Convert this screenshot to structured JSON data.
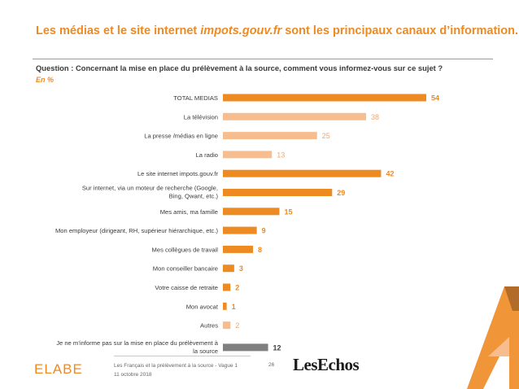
{
  "slide": {
    "title_part1": "Les médias et le site internet ",
    "title_emphasis": "impots.gouv.fr",
    "title_part2": " sont les principaux canaux d’information.",
    "question": "Question : Concernant la mise en place du prélèvement à la source, comment vous informez-vous sur ce sujet ?",
    "unit": "En  %"
  },
  "footer": {
    "logo": "ELABE",
    "survey": "Les Français et la prélèvement à la source - Vague 1",
    "date": "11 octobre 2018",
    "page": "26",
    "brand": "LesEchos"
  },
  "colors": {
    "dark_orange": "#ee8a22",
    "light_orange": "#f7bd8e",
    "gray": "#7f7f7f",
    "label_dark_orange": "#ee8a22",
    "label_light_orange": "#f2a66b",
    "label_gray": "#404040"
  },
  "chart_data": {
    "type": "bar",
    "orientation": "horizontal",
    "categories": [
      "TOTAL MEDIAS",
      "La télévision",
      "La presse /médias en ligne",
      "La radio",
      "Le site internet impots.gouv.fr",
      "Sur internet, via un moteur de recherche (Google, Bing, Qwant, etc.)",
      "Mes amis, ma famille",
      "Mon employeur (dirigeant, RH, supérieur hiérarchique, etc.)",
      "Mes collègues de travail",
      "Mon conseiller bancaire",
      "Votre caisse de retraite",
      "Mon avocat",
      "Autres",
      "Je ne m’informe pas sur la mise en place du prélèvement à la source"
    ],
    "values": [
      54,
      38,
      25,
      13,
      42,
      29,
      15,
      9,
      8,
      3,
      2,
      1,
      2,
      12
    ],
    "bar_styles": [
      "dark",
      "light",
      "light",
      "light",
      "dark",
      "dark",
      "dark",
      "dark",
      "dark",
      "dark",
      "dark",
      "dark",
      "light",
      "gray"
    ],
    "unit": "%",
    "xlim": [
      0,
      60
    ]
  }
}
